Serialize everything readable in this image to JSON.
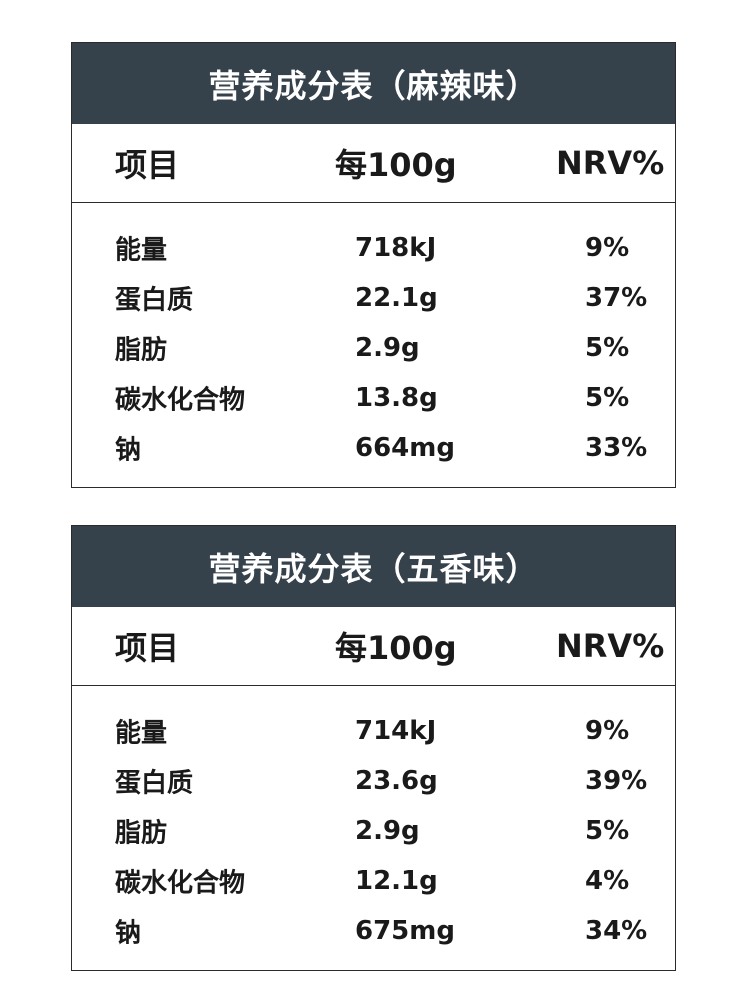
{
  "tables": [
    {
      "title": "营养成分表（麻辣味）",
      "headers": [
        "项目",
        "每100g",
        "NRV%"
      ],
      "rows": [
        {
          "item": "能量",
          "per100g": "718kJ",
          "nrv": "9%"
        },
        {
          "item": "蛋白质",
          "per100g": "22.1g",
          "nrv": "37%"
        },
        {
          "item": "脂肪",
          "per100g": "2.9g",
          "nrv": "5%"
        },
        {
          "item": "碳水化合物",
          "per100g": "13.8g",
          "nrv": "5%"
        },
        {
          "item": "钠",
          "per100g": "664mg",
          "nrv": "33%"
        }
      ]
    },
    {
      "title": "营养成分表（五香味）",
      "headers": [
        "项目",
        "每100g",
        "NRV%"
      ],
      "rows": [
        {
          "item": "能量",
          "per100g": "714kJ",
          "nrv": "9%"
        },
        {
          "item": "蛋白质",
          "per100g": "23.6g",
          "nrv": "39%"
        },
        {
          "item": "脂肪",
          "per100g": "2.9g",
          "nrv": "5%"
        },
        {
          "item": "碳水化合物",
          "per100g": "12.1g",
          "nrv": "4%"
        },
        {
          "item": "钠",
          "per100g": "675mg",
          "nrv": "34%"
        }
      ]
    }
  ],
  "colors": {
    "title_bg": "#35414b",
    "title_text": "#ffffff",
    "border": "#2b2b2b",
    "text": "#1a1a1a"
  }
}
